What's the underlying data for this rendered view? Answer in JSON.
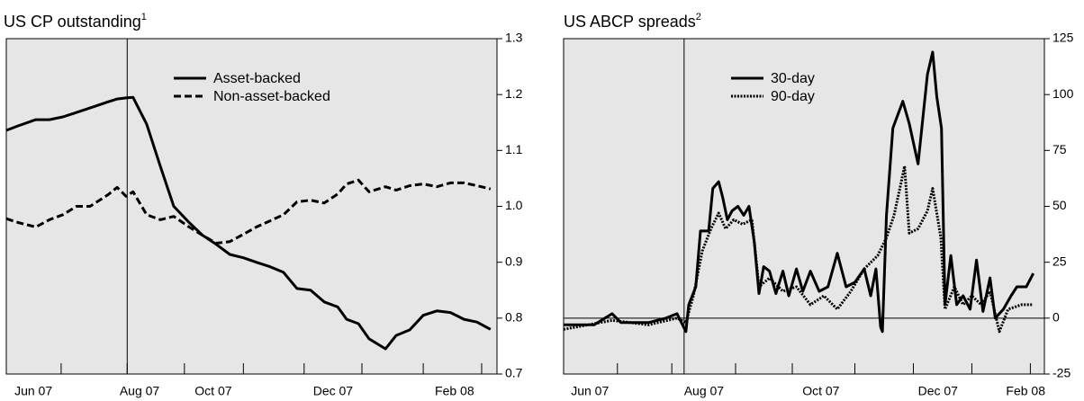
{
  "chart_data": [
    {
      "type": "line",
      "title": "US CP outstanding",
      "title_note": "1",
      "x": [
        0,
        0.2,
        0.5,
        0.73,
        0.96,
        1.19,
        1.42,
        1.73,
        1.88,
        2.03,
        2.15,
        2.38,
        2.61,
        2.84,
        3.1,
        3.33,
        3.56,
        3.79,
        4.02,
        4.24,
        4.47,
        4.7,
        4.93,
        5.16,
        5.39,
        5.62,
        5.77,
        5.97,
        6.15,
        6.43,
        6.61,
        6.84,
        7.07,
        7.3,
        7.53,
        7.76,
        7.98,
        8.21
      ],
      "series": [
        {
          "name": "Asset-backed",
          "color": "#000000",
          "dash": "solid",
          "values": [
            1.136,
            1.144,
            1.155,
            1.155,
            1.16,
            1.168,
            1.176,
            1.187,
            1.192,
            1.194,
            1.195,
            1.147,
            1.072,
            1.0,
            0.971,
            0.948,
            0.932,
            0.914,
            0.908,
            0.9,
            0.892,
            0.882,
            0.853,
            0.85,
            0.829,
            0.82,
            0.798,
            0.79,
            0.763,
            0.745,
            0.769,
            0.779,
            0.805,
            0.813,
            0.81,
            0.798,
            0.793,
            0.78
          ]
        },
        {
          "name": "Non-asset-backed",
          "color": "#000000",
          "dash": "dashed",
          "values": [
            0.978,
            0.971,
            0.963,
            0.976,
            0.985,
            1.0,
            1.0,
            1.021,
            1.034,
            1.018,
            1.026,
            0.985,
            0.976,
            0.982,
            0.963,
            0.948,
            0.934,
            0.937,
            0.95,
            0.963,
            0.974,
            0.985,
            1.008,
            1.011,
            1.006,
            1.022,
            1.04,
            1.047,
            1.026,
            1.035,
            1.029,
            1.037,
            1.04,
            1.035,
            1.042,
            1.042,
            1.037,
            1.031
          ]
        }
      ],
      "xlim": [
        0,
        8.32
      ],
      "xticks": [
        {
          "value": 0.46,
          "label": "Jun 07"
        },
        {
          "value": 2.26,
          "label": "Aug 07"
        },
        {
          "value": 3.51,
          "label": "Oct 07"
        },
        {
          "value": 5.54,
          "label": "Dec 07"
        },
        {
          "value": 7.6,
          "label": "Feb 08"
        }
      ],
      "xtick_marks": [
        0.93,
        2.05,
        3.02,
        4.02,
        5.05,
        6.03,
        7.07,
        8.06
      ],
      "event_x": 2.05,
      "ylim": [
        0.7,
        1.3
      ],
      "yticks": [
        {
          "value": 0.7,
          "label": "0.7"
        },
        {
          "value": 0.8,
          "label": "0.8"
        },
        {
          "value": 0.9,
          "label": "0.9"
        },
        {
          "value": 1.0,
          "label": "1.0"
        },
        {
          "value": 1.1,
          "label": "1.1"
        },
        {
          "value": 1.2,
          "label": "1.2"
        },
        {
          "value": 1.3,
          "label": "1.3"
        }
      ],
      "y_axis_side": "right",
      "zero_line": false,
      "background": "#e6e6e6"
    },
    {
      "type": "line",
      "title": "US ABCP spreads",
      "title_note": "2",
      "series": [
        {
          "name": "30-day",
          "color": "#000000",
          "dash": "solid",
          "x": [
            0,
            0.52,
            0.83,
            0.98,
            1.45,
            1.75,
            1.94,
            2.09,
            2.14,
            2.26,
            2.34,
            2.48,
            2.55,
            2.65,
            2.72,
            2.8,
            2.88,
            2.98,
            3.08,
            3.17,
            3.26,
            3.34,
            3.42,
            3.52,
            3.63,
            3.75,
            3.85,
            3.98,
            4.09,
            4.22,
            4.37,
            4.52,
            4.68,
            4.83,
            4.98,
            5.14,
            5.25,
            5.34,
            5.42,
            5.45,
            5.52,
            5.63,
            5.8,
            5.91,
            6.06,
            6.22,
            6.31,
            6.38,
            6.46,
            6.52,
            6.62,
            6.72,
            6.83,
            6.95,
            7.06,
            7.17,
            7.29,
            7.38,
            7.52,
            7.65,
            7.75,
            7.91,
            8.03
          ],
          "values": [
            -3,
            -3,
            2,
            -2,
            -2,
            0,
            2,
            -6,
            6,
            14,
            39,
            39,
            58,
            61,
            54,
            44,
            48,
            50,
            46,
            50,
            34,
            11,
            23,
            21,
            11,
            21,
            10,
            22,
            12,
            21,
            12,
            14,
            29,
            14,
            16,
            22,
            10,
            22,
            -4,
            -6,
            46,
            85,
            97,
            87,
            69,
            109,
            119,
            99,
            85,
            6,
            28,
            6,
            10,
            4,
            26,
            3,
            18,
            0,
            4,
            10,
            14,
            14,
            20
          ]
        },
        {
          "name": "90-day",
          "color": "#000000",
          "dash": "dotted",
          "x": [
            0,
            0.83,
            1.45,
            1.94,
            2.09,
            2.22,
            2.37,
            2.52,
            2.65,
            2.77,
            2.91,
            3.06,
            3.22,
            3.34,
            3.52,
            3.75,
            3.98,
            4.22,
            4.45,
            4.68,
            4.91,
            5.14,
            5.37,
            5.52,
            5.65,
            5.75,
            5.83,
            5.91,
            6.06,
            6.22,
            6.31,
            6.45,
            6.52,
            6.68,
            6.83,
            6.98,
            7.14,
            7.29,
            7.45,
            7.6,
            7.83,
            8.03
          ],
          "values": [
            -5,
            -1,
            -3,
            0,
            -2,
            10,
            30,
            40,
            47,
            40,
            44,
            42,
            44,
            14,
            18,
            12,
            14,
            6,
            10,
            4,
            12,
            22,
            28,
            36,
            46,
            58,
            68,
            38,
            40,
            48,
            58,
            36,
            4,
            14,
            6,
            10,
            6,
            12,
            -6,
            4,
            6,
            6
          ]
        }
      ],
      "xlim": [
        0,
        8.22
      ],
      "xticks": [
        {
          "value": 0.45,
          "label": "Jun 07"
        },
        {
          "value": 2.4,
          "label": "Aug 07"
        },
        {
          "value": 4.4,
          "label": "Oct 07"
        },
        {
          "value": 6.4,
          "label": "Dec 07"
        },
        {
          "value": 7.9,
          "label": "Feb 08"
        }
      ],
      "xtick_marks": [
        0.92,
        1.85,
        2.94,
        3.91,
        4.98,
        5.98,
        6.98,
        7.98
      ],
      "event_x": 2.06,
      "ylim": [
        -25,
        125
      ],
      "yticks": [
        -25,
        0,
        25,
        50,
        75,
        100,
        125
      ],
      "y_axis_side": "right",
      "zero_line": true,
      "background": "#e6e6e6"
    }
  ]
}
